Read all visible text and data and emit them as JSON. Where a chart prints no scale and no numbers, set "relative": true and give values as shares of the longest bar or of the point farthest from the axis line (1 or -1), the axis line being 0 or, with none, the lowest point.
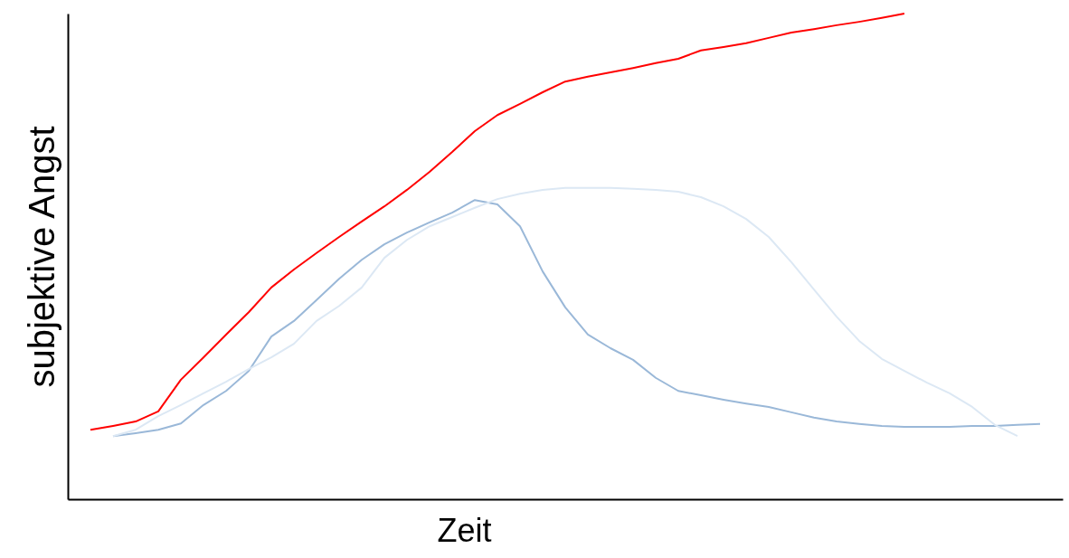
{
  "chart_data": {
    "type": "line",
    "relative": true,
    "xlabel": "Zeit",
    "ylabel": "subjektive Angst",
    "grid": false,
    "categories": [
      null,
      null,
      null,
      null,
      null,
      null,
      null,
      null,
      null,
      null,
      null,
      null,
      null,
      null,
      null,
      null,
      null,
      null,
      null,
      null,
      null,
      null,
      null,
      null,
      null,
      null,
      null,
      null,
      null,
      null,
      null,
      null,
      null,
      null,
      null,
      null,
      null,
      null,
      null,
      null,
      null,
      null,
      null,
      null,
      null
    ],
    "series": [
      {
        "color": "#ff0000",
        "values": [
          null,
          0.143,
          0.151,
          0.16,
          0.181,
          0.246,
          0.292,
          0.339,
          0.385,
          0.436,
          0.473,
          0.507,
          0.54,
          0.572,
          0.603,
          0.637,
          0.674,
          0.715,
          0.758,
          0.791,
          0.814,
          0.838,
          0.86,
          0.87,
          0.879,
          0.888,
          0.898,
          0.907,
          0.924,
          0.931,
          0.939,
          0.95,
          0.961,
          0.968,
          0.976,
          0.983,
          0.991,
          1.0,
          null,
          null,
          null,
          null,
          null,
          null,
          null
        ]
      },
      {
        "color": "#9ab8d8",
        "values": [
          null,
          null,
          0.13,
          0.136,
          0.143,
          0.156,
          0.194,
          0.223,
          0.264,
          0.335,
          0.367,
          0.41,
          0.454,
          0.493,
          0.525,
          0.549,
          0.57,
          0.59,
          0.616,
          0.607,
          0.562,
          0.469,
          0.395,
          0.339,
          0.311,
          0.287,
          0.25,
          0.223,
          0.214,
          0.205,
          0.197,
          0.19,
          0.179,
          0.168,
          0.16,
          0.155,
          0.151,
          0.149,
          0.149,
          0.149,
          0.151,
          0.151,
          0.153,
          0.155,
          null
        ]
      },
      {
        "color": "#dce8f4",
        "values": [
          null,
          null,
          0.13,
          0.143,
          0.171,
          0.194,
          0.218,
          0.242,
          0.268,
          0.292,
          0.32,
          0.367,
          0.398,
          0.436,
          0.497,
          0.534,
          0.562,
          0.581,
          0.6,
          0.618,
          0.629,
          0.637,
          0.641,
          0.641,
          0.641,
          0.639,
          0.637,
          0.633,
          0.622,
          0.603,
          0.577,
          0.54,
          0.488,
          0.432,
          0.376,
          0.326,
          0.289,
          0.264,
          0.24,
          0.218,
          0.19,
          0.153,
          0.13,
          null,
          null
        ]
      }
    ]
  }
}
